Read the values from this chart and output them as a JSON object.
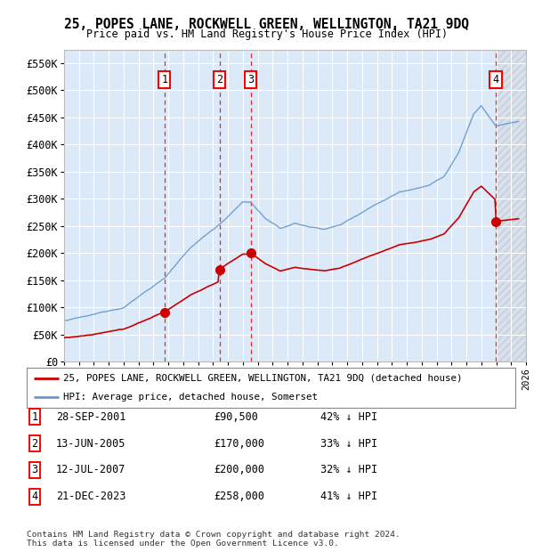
{
  "title": "25, POPES LANE, ROCKWELL GREEN, WELLINGTON, TA21 9DQ",
  "subtitle": "Price paid vs. HM Land Registry's House Price Index (HPI)",
  "ylim": [
    0,
    575000
  ],
  "yticks": [
    0,
    50000,
    100000,
    150000,
    200000,
    250000,
    300000,
    350000,
    400000,
    450000,
    500000,
    550000
  ],
  "ytick_labels": [
    "£0",
    "£50K",
    "£100K",
    "£150K",
    "£200K",
    "£250K",
    "£300K",
    "£350K",
    "£400K",
    "£450K",
    "£500K",
    "£550K"
  ],
  "plot_bg_color": "#dce9f8",
  "hpi_color": "#6699cc",
  "price_color": "#cc0000",
  "transaction_dates": [
    2001.74,
    2005.44,
    2007.53,
    2023.97
  ],
  "transaction_prices": [
    90500,
    170000,
    200000,
    258000
  ],
  "transaction_labels": [
    "1",
    "2",
    "3",
    "4"
  ],
  "legend_property": "25, POPES LANE, ROCKWELL GREEN, WELLINGTON, TA21 9DQ (detached house)",
  "legend_hpi": "HPI: Average price, detached house, Somerset",
  "table_data": [
    [
      "1",
      "28-SEP-2001",
      "£90,500",
      "42% ↓ HPI"
    ],
    [
      "2",
      "13-JUN-2005",
      "£170,000",
      "33% ↓ HPI"
    ],
    [
      "3",
      "12-JUL-2007",
      "£200,000",
      "32% ↓ HPI"
    ],
    [
      "4",
      "21-DEC-2023",
      "£258,000",
      "41% ↓ HPI"
    ]
  ],
  "footnote": "Contains HM Land Registry data © Crown copyright and database right 2024.\nThis data is licensed under the Open Government Licence v3.0.",
  "xmin": 1995,
  "xmax": 2026
}
